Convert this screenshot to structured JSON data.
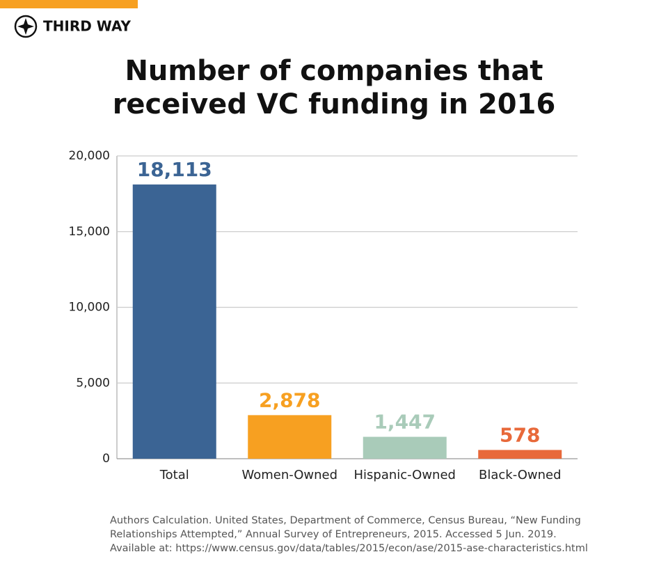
{
  "brand": "THIRD WAY",
  "chart_data": {
    "type": "bar",
    "title": "Number of companies that received VC funding in 2016",
    "categories": [
      "Total",
      "Women-Owned",
      "Hispanic-Owned",
      "Black-Owned"
    ],
    "values": [
      18113,
      2878,
      1447,
      578
    ],
    "value_labels": [
      "18,113",
      "2,878",
      "1,447",
      "578"
    ],
    "colors": [
      "#3b6494",
      "#f7a021",
      "#a9cbb9",
      "#e8693a"
    ],
    "ylim": [
      0,
      20000
    ],
    "yticks": [
      0,
      {
        "value": 5000,
        "label": "5,000"
      },
      {
        "value": 10000,
        "label": "10,000"
      },
      {
        "value": 15000,
        "label": "15,000"
      },
      {
        "value": 20000,
        "label": "20,000"
      }
    ],
    "grid": true,
    "source": "Authors Calculation. United States, Department of Commerce, Census Bureau, “New Funding Relationships Attempted,” Annual Survey of Entrepreneurs, 2015. Accessed 5 Jun. 2019. Available at: https://www.census.gov/data/tables/2015/econ/ase/2015-ase-characteristics.html"
  }
}
